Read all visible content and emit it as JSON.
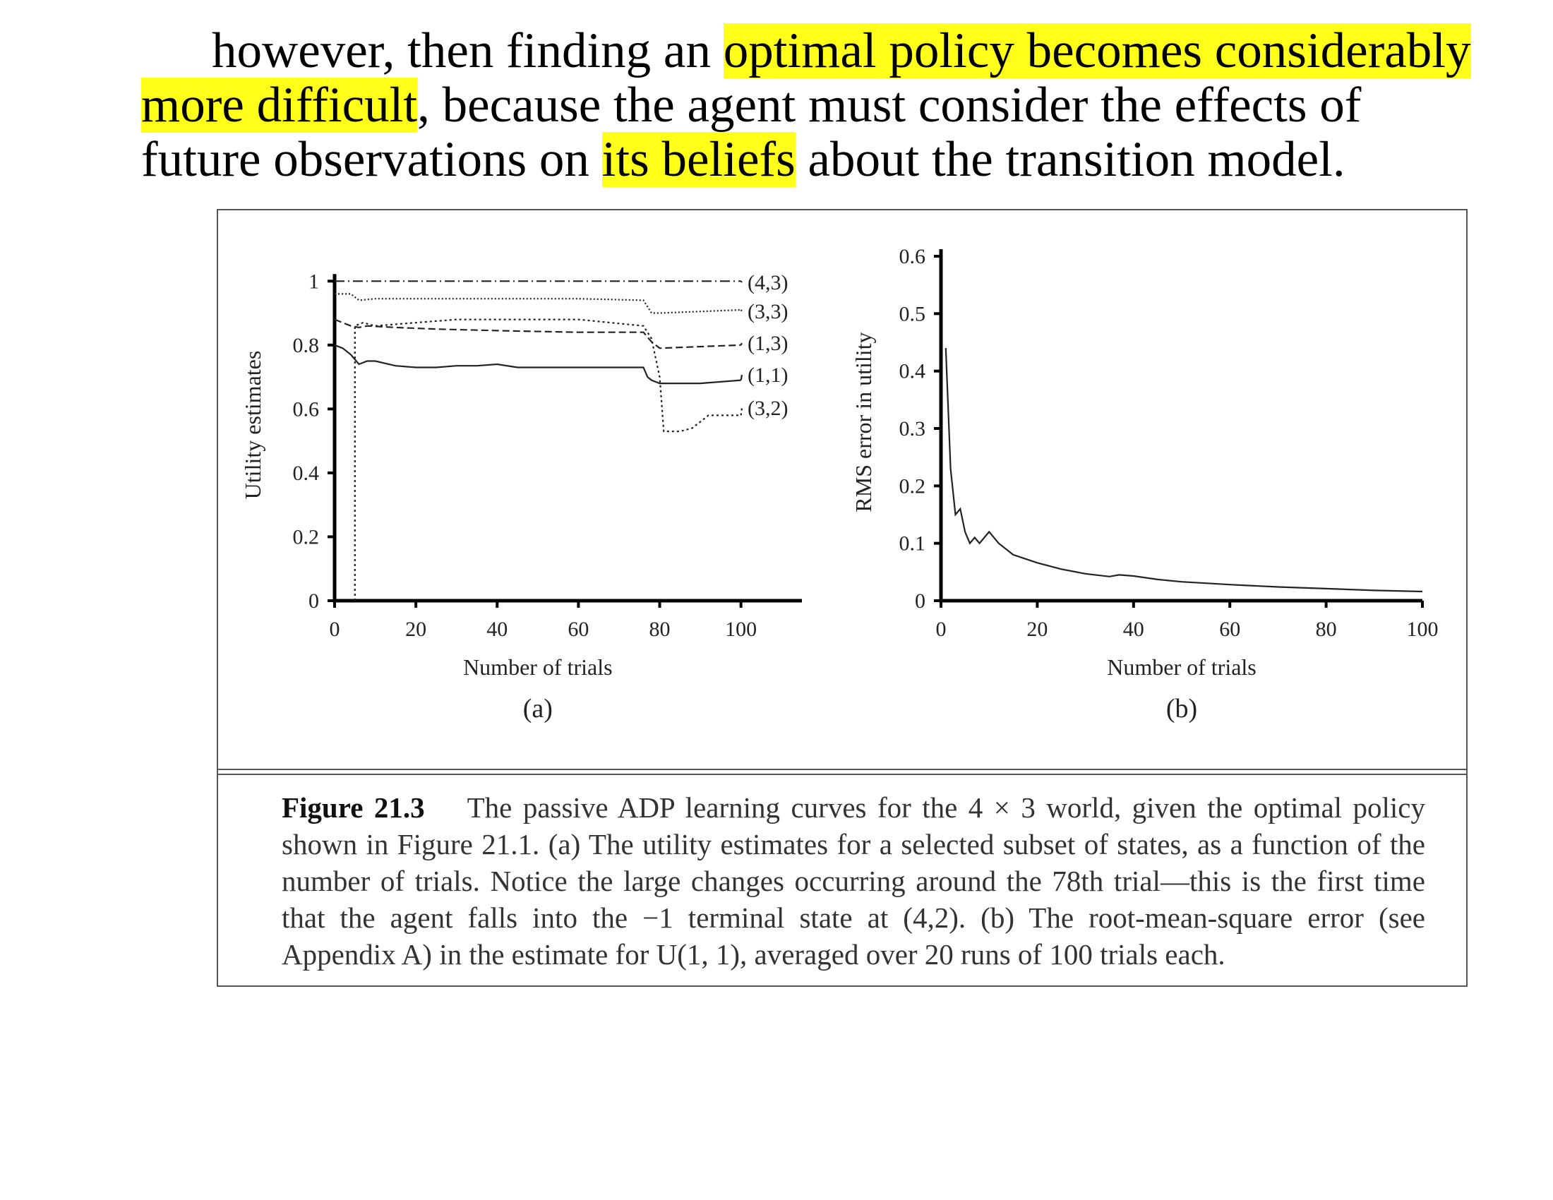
{
  "intro": {
    "line1_a": "however, then finding an ",
    "line1_hl": "optimal policy becomes considerably",
    "line2_hl": "more difficult",
    "line2_b": ", because the agent must consider the effects of",
    "line3_a": "future observations on ",
    "line3_hl": "its beliefs",
    "line3_b": " about the transition model."
  },
  "highlight_color": "#ffff1a",
  "caption": {
    "label": "Figure 21.3",
    "text": "The passive ADP learning curves for the 4 × 3 world, given the optimal policy shown in Figure 21.1. (a) The utility estimates for a selected subset of states, as a function of the number of trials. Notice the large changes occurring around the 78th trial—this is the first time that the agent falls into the −1 terminal state at (4,2). (b) The root-mean-square error (see Appendix A) in the estimate for U(1, 1), averaged over 20 runs of 100 trials each."
  },
  "chart_data": [
    {
      "type": "line",
      "panel_label": "(a)",
      "xlabel": "Number of trials",
      "ylabel": "Utility estimates",
      "xlim": [
        0,
        115
      ],
      "ylim": [
        0,
        1.1
      ],
      "xticks": [
        0,
        20,
        40,
        60,
        80,
        100
      ],
      "yticks": [
        0,
        0.2,
        0.4,
        0.6,
        0.8,
        1
      ],
      "xtick_labels": [
        "0",
        "20",
        "40",
        "60",
        "80",
        "100"
      ],
      "ytick_labels": [
        "0",
        "0.2",
        "0.4",
        "0.6",
        "0.8",
        "1"
      ],
      "legend_placement": "right end of lines",
      "series": [
        {
          "name": "(4,3)",
          "dash": "14,5,2,5",
          "x": [
            0,
            100
          ],
          "y": [
            1.0,
            1.0
          ]
        },
        {
          "name": "(3,3)",
          "dash": "2,3",
          "x": [
            0,
            4,
            5,
            6,
            10,
            20,
            40,
            60,
            76,
            77,
            78,
            80,
            100
          ],
          "y": [
            0.96,
            0.96,
            0.95,
            0.94,
            0.945,
            0.945,
            0.945,
            0.945,
            0.94,
            0.92,
            0.9,
            0.9,
            0.91
          ]
        },
        {
          "name": "(1,3)",
          "dash": "10,5",
          "x": [
            0,
            2,
            4,
            6,
            8,
            15,
            25,
            40,
            60,
            76,
            78,
            80,
            100
          ],
          "y": [
            0.88,
            0.87,
            0.86,
            0.855,
            0.86,
            0.855,
            0.85,
            0.845,
            0.84,
            0.84,
            0.81,
            0.79,
            0.8
          ]
        },
        {
          "name": "(1,1)",
          "dash": "",
          "x": [
            0,
            2,
            4,
            6,
            8,
            10,
            15,
            20,
            25,
            30,
            35,
            40,
            45,
            50,
            60,
            70,
            76,
            77,
            78,
            80,
            90,
            100
          ],
          "y": [
            0.8,
            0.79,
            0.77,
            0.74,
            0.75,
            0.75,
            0.735,
            0.73,
            0.73,
            0.735,
            0.735,
            0.74,
            0.73,
            0.73,
            0.73,
            0.73,
            0.73,
            0.7,
            0.69,
            0.68,
            0.68,
            0.69
          ]
        },
        {
          "name": "(3,2)",
          "dash": "3,4",
          "x": [
            5,
            5,
            7,
            10,
            20,
            30,
            40,
            60,
            76,
            78,
            80,
            81,
            85,
            88,
            90,
            92,
            100
          ],
          "y": [
            0.0,
            0.86,
            0.87,
            0.86,
            0.87,
            0.88,
            0.88,
            0.88,
            0.86,
            0.82,
            0.7,
            0.53,
            0.53,
            0.54,
            0.56,
            0.58,
            0.58
          ]
        }
      ]
    },
    {
      "type": "line",
      "panel_label": "(b)",
      "xlabel": "Number of trials",
      "ylabel": "RMS error in utility",
      "xlim": [
        0,
        100
      ],
      "ylim": [
        0,
        0.6
      ],
      "xticks": [
        0,
        20,
        40,
        60,
        80,
        100
      ],
      "yticks": [
        0,
        0.1,
        0.2,
        0.3,
        0.4,
        0.5,
        0.6
      ],
      "xtick_labels": [
        "0",
        "20",
        "40",
        "60",
        "80",
        "100"
      ],
      "ytick_labels": [
        "0",
        "0.1",
        "0.2",
        "0.3",
        "0.4",
        "0.5",
        "0.6"
      ],
      "series": [
        {
          "name": "",
          "dash": "",
          "x": [
            1,
            2,
            3,
            4,
            5,
            6,
            7,
            8,
            9,
            10,
            12,
            15,
            20,
            25,
            30,
            35,
            37,
            40,
            45,
            50,
            60,
            70,
            80,
            90,
            100
          ],
          "y": [
            0.44,
            0.23,
            0.15,
            0.16,
            0.12,
            0.1,
            0.11,
            0.1,
            0.11,
            0.12,
            0.1,
            0.08,
            0.066,
            0.055,
            0.047,
            0.042,
            0.045,
            0.043,
            0.037,
            0.033,
            0.028,
            0.024,
            0.021,
            0.018,
            0.016
          ]
        }
      ]
    }
  ]
}
